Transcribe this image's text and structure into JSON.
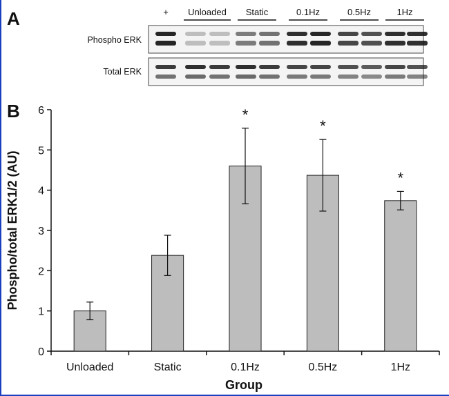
{
  "panels": {
    "a_label": "A",
    "b_label": "B"
  },
  "blot": {
    "lane_groups": [
      "+",
      "Unloaded",
      "Static",
      "0.1Hz",
      "0.5Hz",
      "1Hz"
    ],
    "rows": [
      "Phospho ERK",
      "Total ERK"
    ]
  },
  "colors": {
    "bar_fill": "#bdbdbd",
    "bar_stroke": "#222222",
    "frame_border": "#1a3fbf",
    "band": "#1a1a1a"
  },
  "chart_data": {
    "type": "bar",
    "categories": [
      "Unloaded",
      "Static",
      "0.1Hz",
      "0.5Hz",
      "1Hz"
    ],
    "values": [
      1.0,
      2.38,
      4.6,
      4.37,
      3.74
    ],
    "errors": [
      0.22,
      0.5,
      0.94,
      0.89,
      0.23
    ],
    "significance": [
      "",
      "",
      "*",
      "*",
      "*"
    ],
    "xlabel": "Group",
    "ylabel": "Phospho/total ERK1/2 (AU)",
    "ylim": [
      0,
      6
    ],
    "yticks": [
      "0",
      "1",
      "2",
      "3",
      "4",
      "5",
      "6"
    ],
    "grid": false,
    "legend": "none"
  }
}
